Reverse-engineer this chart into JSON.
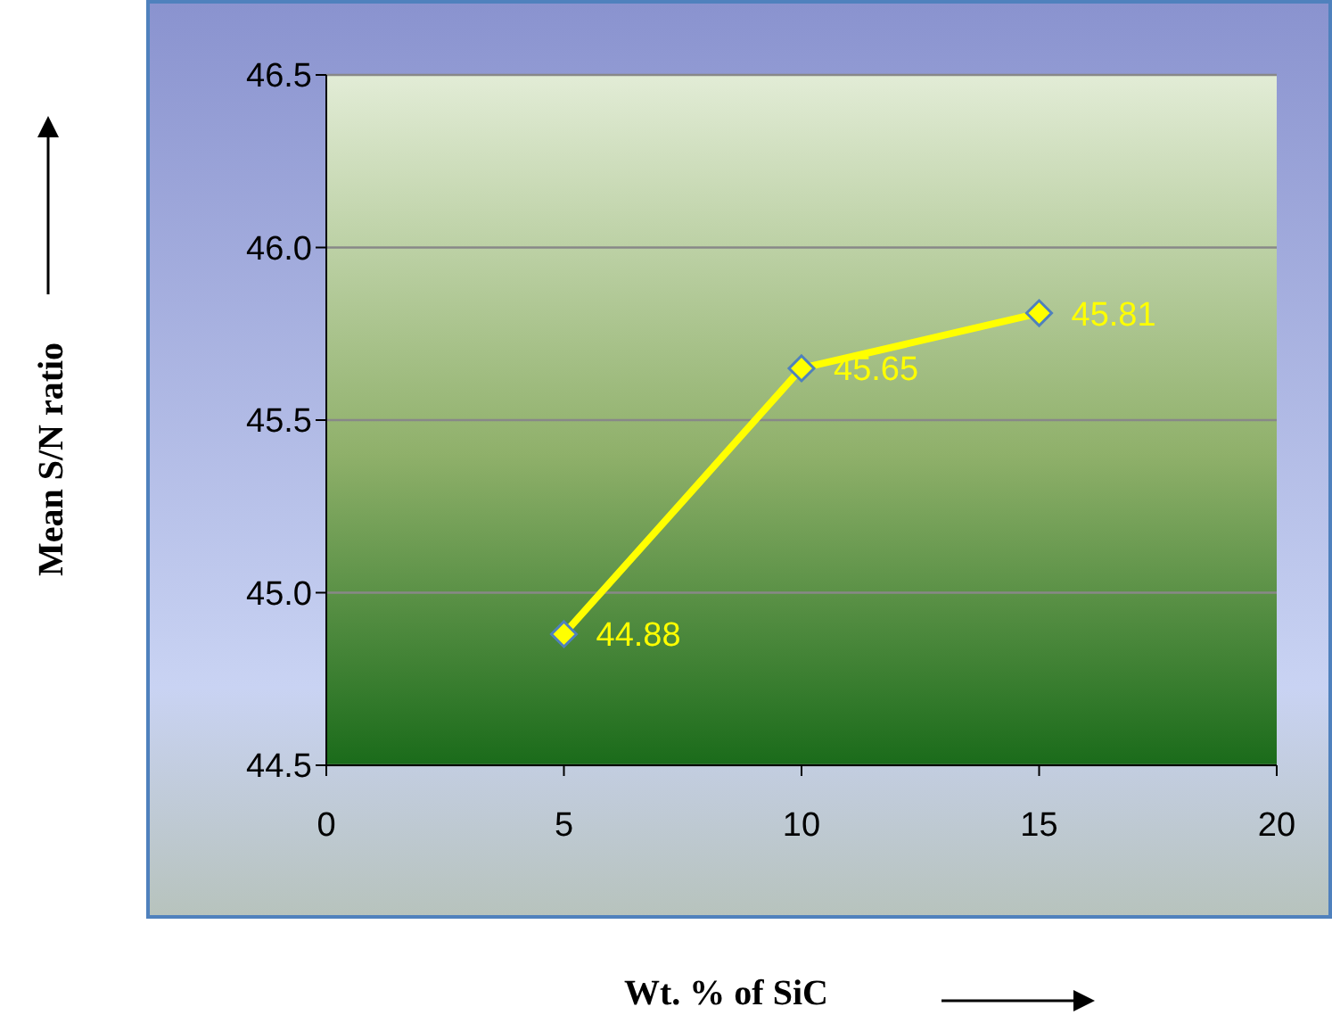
{
  "chart_data": {
    "type": "line",
    "xlabel": "Wt. % of SiC",
    "ylabel": "Mean S/N ratio",
    "x": [
      5,
      10,
      15
    ],
    "series": [
      {
        "color": "#ffff00",
        "values": [
          44.88,
          45.65,
          45.81
        ]
      }
    ],
    "xlim": [
      0,
      20
    ],
    "xticks": [
      0,
      5,
      10,
      15,
      20
    ],
    "ylim": [
      44.5,
      46.5
    ],
    "yticks": [
      44.5,
      {
        "value": 45,
        "label": "45.0"
      },
      45.5,
      {
        "value": 46,
        "label": "46.0"
      },
      46.5
    ],
    "grid": "y",
    "marker": "diamond",
    "line_style": "solid",
    "data_labels": true
  }
}
